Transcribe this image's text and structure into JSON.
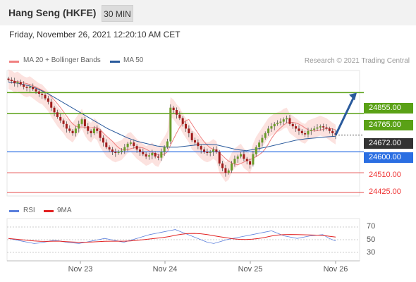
{
  "header": {
    "title": "Hang Seng (HKFE)",
    "interval": "30 MIN",
    "datetime": "Friday, November 26, 2021 12:20:10 AM CET"
  },
  "legend": {
    "ma20": "MA 20 + Bollinger Bands",
    "ma50": "MA 50",
    "ma20_color": "#f08080",
    "ma50_color": "#2a5a9c",
    "credit": "Research © 2021 Trading Central"
  },
  "levels": {
    "r2": "24855.00",
    "r1": "24765.00",
    "last": "24672.00",
    "pivot": "24600.00",
    "s1": "24510.00",
    "s2": "24425.00"
  },
  "rsi_legend": {
    "rsi": "RSI",
    "ma9": "9MA",
    "rsi_color": "#5b7fdc",
    "ma9_color": "#e22222"
  },
  "rsi_ticks": [
    "70",
    "50",
    "30"
  ],
  "xaxis": [
    "Nov 23",
    "Nov 24",
    "Nov 25",
    "Nov 26"
  ],
  "colors": {
    "support_green": "#5aa116",
    "pivot_blue": "#2a6ee2",
    "resistance_red": "#e33333",
    "candle_up": "#6a9c2a",
    "candle_down": "#a01c1c",
    "arrow": "#2a5a9c"
  },
  "chart_data": {
    "type": "candlestick",
    "y_unit": "index points",
    "ylim": [
      24410,
      24950
    ],
    "horizontal_levels": [
      24855,
      24765,
      24672,
      24600,
      24510,
      24425
    ],
    "close_series": [
      24910,
      24905,
      24895,
      24900,
      24890,
      24880,
      24875,
      24880,
      24870,
      24860,
      24850,
      24845,
      24830,
      24815,
      24790,
      24770,
      24750,
      24735,
      24720,
      24700,
      24690,
      24680,
      24700,
      24720,
      24740,
      24710,
      24690,
      24680,
      24700,
      24690,
      24660,
      24640,
      24620,
      24610,
      24600,
      24595,
      24600,
      24605,
      24620,
      24635,
      24640,
      24625,
      24610,
      24600,
      24590,
      24580,
      24585,
      24595,
      24580,
      24575,
      24600,
      24620,
      24645,
      24790,
      24780,
      24760,
      24745,
      24720,
      24700,
      24680,
      24650,
      24640,
      24625,
      24610,
      24600,
      24595,
      24600,
      24610,
      24600,
      24550,
      24530,
      24510,
      24520,
      24550,
      24570,
      24580,
      24590,
      24570,
      24560,
      24545,
      24590,
      24620,
      24640,
      24660,
      24680,
      24700,
      24710,
      24720,
      24725,
      24730,
      24740,
      24745,
      24720,
      24710,
      24700,
      24690,
      24680,
      24675,
      24690,
      24695,
      24700,
      24705,
      24710,
      24705,
      24700,
      24690,
      24680,
      24672
    ],
    "ma50": [
      24900,
      24895,
      24885,
      24870,
      24850,
      24825,
      24800,
      24775,
      24750,
      24725,
      24700,
      24680,
      24660,
      24645,
      24635,
      24625,
      24620,
      24620,
      24625,
      24630,
      24633,
      24630,
      24620,
      24610,
      24605,
      24612,
      24620,
      24630,
      24640,
      24650,
      24656,
      24660,
      24664,
      24667
    ],
    "rsi": [
      52,
      50,
      48,
      46,
      44,
      45,
      47,
      49,
      48,
      46,
      45,
      44,
      46,
      48,
      50,
      52,
      50,
      48,
      46,
      49,
      52,
      55,
      58,
      60,
      62,
      64,
      66,
      62,
      58,
      54,
      50,
      46,
      44,
      47,
      50,
      52,
      54,
      56,
      58,
      60,
      62,
      64,
      60,
      56,
      54,
      52,
      54,
      56,
      57,
      58,
      52,
      48
    ]
  }
}
